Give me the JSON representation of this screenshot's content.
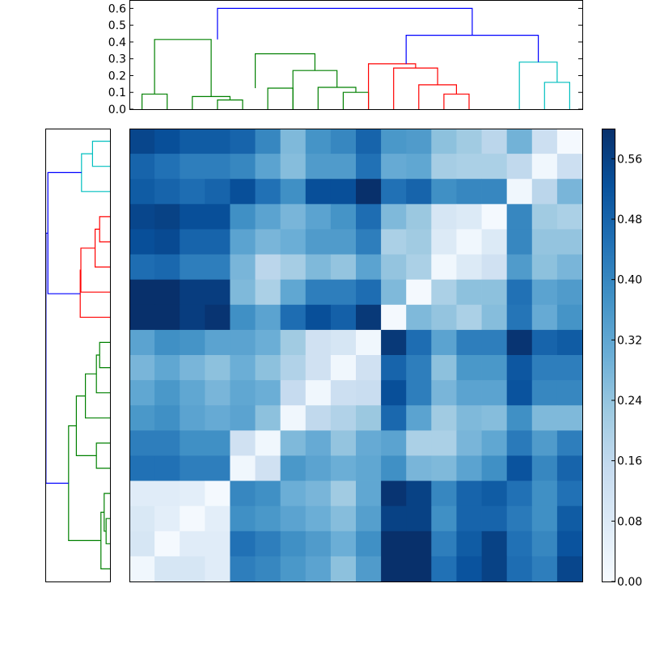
{
  "chart_data": [
    {
      "type": "dendrogram",
      "orientation": "top",
      "ylim": [
        0,
        0.65
      ],
      "y_ticks": [
        "0.0",
        "0.1",
        "0.2",
        "0.3",
        "0.4",
        "0.5",
        "0.6"
      ],
      "leaf_count": 18,
      "links": [
        {
          "a": 0.5,
          "b": 1.5,
          "ha": 0.0,
          "hb": 0.0,
          "h": 0.09,
          "color": "#008000"
        },
        {
          "a": 3.5,
          "b": 4.5,
          "ha": 0.0,
          "hb": 0.0,
          "h": 0.055,
          "color": "#008000"
        },
        {
          "a": 2.5,
          "b": 4.0,
          "ha": 0.0,
          "hb": 0.055,
          "h": 0.075,
          "color": "#008000"
        },
        {
          "a": 1.0,
          "b": 3.25,
          "ha": 0.09,
          "hb": 0.075,
          "h": 0.415,
          "color": "#008000"
        },
        {
          "a": 5.5,
          "b": 6.5,
          "ha": 0.0,
          "hb": 0.0,
          "h": 0.125,
          "color": "#008000"
        },
        {
          "a": 8.5,
          "b": 9.5,
          "ha": 0.0,
          "hb": 0.0,
          "h": 0.1,
          "color": "#008000"
        },
        {
          "a": 7.5,
          "b": 9.0,
          "ha": 0.0,
          "hb": 0.1,
          "h": 0.13,
          "color": "#008000"
        },
        {
          "a": 6.5,
          "b": 8.25,
          "ha": 0.0,
          "hb": 0.13,
          "h": 0.23,
          "color": "#008000"
        },
        {
          "a": 5.0,
          "b": 7.375,
          "ha": 0.125,
          "hb": 0.23,
          "h": 0.33,
          "color": "#008000"
        },
        {
          "a": 12.5,
          "b": 13.5,
          "ha": 0.0,
          "hb": 0.0,
          "h": 0.09,
          "color": "#ff0000"
        },
        {
          "a": 11.5,
          "b": 13.0,
          "ha": 0.0,
          "hb": 0.09,
          "h": 0.145,
          "color": "#ff0000"
        },
        {
          "a": 10.5,
          "b": 12.25,
          "ha": 0.0,
          "hb": 0.145,
          "h": 0.245,
          "color": "#ff0000"
        },
        {
          "a": 9.5,
          "b": 11.375,
          "ha": 0.0,
          "hb": 0.245,
          "h": 0.27,
          "color": "#ff0000"
        },
        {
          "a": 16.5,
          "b": 17.5,
          "ha": 0.0,
          "hb": 0.0,
          "h": 0.16,
          "color": "#00bfbf"
        },
        {
          "a": 15.5,
          "b": 17.0,
          "ha": 0.0,
          "hb": 0.16,
          "h": 0.28,
          "color": "#00bfbf"
        },
        {
          "a": 11.0,
          "b": 16.25,
          "ha": 0.27,
          "hb": 0.28,
          "h": 0.44,
          "color": "#0000ff"
        },
        {
          "a": 3.5,
          "b": 13.625,
          "ha": 0.415,
          "hb": 0.44,
          "h": 0.6,
          "color": "#0000ff"
        }
      ]
    },
    {
      "type": "dendrogram",
      "orientation": "left",
      "leaf_count": 18,
      "links": [
        {
          "a": 0.5,
          "b": 1.5,
          "ha": 0.0,
          "hb": 0.0,
          "h": 0.27,
          "color": "#00bfbf"
        },
        {
          "a": 1.0,
          "b": 2.5,
          "ha": 0.27,
          "hb": 0.0,
          "h": 0.44,
          "color": "#00bfbf"
        },
        {
          "a": 3.5,
          "b": 4.5,
          "ha": 0.0,
          "hb": 0.0,
          "h": 0.16,
          "color": "#ff0000"
        },
        {
          "a": 4.0,
          "b": 5.5,
          "ha": 0.16,
          "hb": 0.0,
          "h": 0.23,
          "color": "#ff0000"
        },
        {
          "a": 4.75,
          "b": 6.5,
          "ha": 0.23,
          "hb": 0.0,
          "h": 0.45,
          "color": "#ff0000"
        },
        {
          "a": 5.625,
          "b": 7.5,
          "ha": 0.45,
          "hb": 0.0,
          "h": 0.46,
          "color": "#ff0000"
        },
        {
          "a": 1.75,
          "b": 6.5625,
          "ha": 0.44,
          "hb": 0.46,
          "h": 0.96,
          "color": "#0000ff"
        },
        {
          "a": 8.5,
          "b": 9.5,
          "ha": 0.0,
          "hb": 0.0,
          "h": 0.16,
          "color": "#008000"
        },
        {
          "a": 9.0,
          "b": 10.5,
          "ha": 0.16,
          "hb": 0.0,
          "h": 0.21,
          "color": "#008000"
        },
        {
          "a": 9.75,
          "b": 11.5,
          "ha": 0.21,
          "hb": 0.0,
          "h": 0.38,
          "color": "#008000"
        },
        {
          "a": 12.5,
          "b": 13.5,
          "ha": 0.0,
          "hb": 0.0,
          "h": 0.21,
          "color": "#008000"
        },
        {
          "a": 10.625,
          "b": 13.0,
          "ha": 0.38,
          "hb": 0.21,
          "h": 0.52,
          "color": "#008000"
        },
        {
          "a": 15.5,
          "b": 16.5,
          "ha": 0.0,
          "hb": 0.0,
          "h": 0.06,
          "color": "#008000"
        },
        {
          "a": 14.5,
          "b": 16.0,
          "ha": 0.0,
          "hb": 0.06,
          "h": 0.09,
          "color": "#008000"
        },
        {
          "a": 15.25,
          "b": 17.5,
          "ha": 0.09,
          "hb": 0.0,
          "h": 0.14,
          "color": "#008000"
        },
        {
          "a": 16.375,
          "b": 11.8125,
          "ha": 0.14,
          "hb": 0.52,
          "h": 0.64,
          "color": "#008000"
        },
        {
          "a": 4.15625,
          "b": 14.09375,
          "ha": 0.96,
          "hb": 0.64,
          "h": 0.99,
          "color": "#0000ff"
        }
      ]
    },
    {
      "type": "heatmap",
      "rows": 18,
      "cols": 18,
      "values": [
        [
          0.55,
          0.53,
          0.5,
          0.5,
          0.48,
          0.4,
          0.27,
          0.37,
          0.4,
          0.48,
          0.36,
          0.35,
          0.25,
          0.22,
          0.17,
          0.29,
          0.13,
          0.01
        ],
        [
          0.48,
          0.45,
          0.42,
          0.42,
          0.4,
          0.33,
          0.26,
          0.35,
          0.35,
          0.45,
          0.31,
          0.32,
          0.21,
          0.2,
          0.2,
          0.16,
          0.02,
          0.13
        ],
        [
          0.5,
          0.48,
          0.46,
          0.48,
          0.53,
          0.45,
          0.38,
          0.53,
          0.53,
          0.6,
          0.45,
          0.48,
          0.38,
          0.4,
          0.4,
          0.02,
          0.17,
          0.28
        ],
        [
          0.55,
          0.56,
          0.53,
          0.53,
          0.38,
          0.33,
          0.28,
          0.33,
          0.37,
          0.46,
          0.27,
          0.23,
          0.1,
          0.08,
          0.01,
          0.4,
          0.22,
          0.2
        ],
        [
          0.53,
          0.54,
          0.48,
          0.48,
          0.33,
          0.28,
          0.3,
          0.35,
          0.35,
          0.42,
          0.2,
          0.22,
          0.08,
          0.02,
          0.08,
          0.4,
          0.24,
          0.24
        ],
        [
          0.46,
          0.47,
          0.42,
          0.42,
          0.28,
          0.17,
          0.21,
          0.27,
          0.24,
          0.33,
          0.24,
          0.2,
          0.02,
          0.08,
          0.12,
          0.35,
          0.25,
          0.28
        ],
        [
          0.6,
          0.6,
          0.57,
          0.57,
          0.27,
          0.2,
          0.32,
          0.42,
          0.42,
          0.46,
          0.27,
          0.01,
          0.2,
          0.25,
          0.25,
          0.45,
          0.33,
          0.35
        ],
        [
          0.61,
          0.6,
          0.57,
          0.59,
          0.38,
          0.33,
          0.46,
          0.53,
          0.49,
          0.58,
          0.01,
          0.27,
          0.24,
          0.2,
          0.26,
          0.44,
          0.31,
          0.37
        ],
        [
          0.33,
          0.38,
          0.37,
          0.33,
          0.33,
          0.3,
          0.22,
          0.12,
          0.1,
          0.02,
          0.58,
          0.46,
          0.33,
          0.42,
          0.42,
          0.59,
          0.48,
          0.5
        ],
        [
          0.28,
          0.32,
          0.28,
          0.25,
          0.3,
          0.25,
          0.19,
          0.12,
          0.02,
          0.12,
          0.48,
          0.42,
          0.25,
          0.36,
          0.36,
          0.51,
          0.42,
          0.42
        ],
        [
          0.32,
          0.36,
          0.32,
          0.28,
          0.32,
          0.3,
          0.15,
          0.02,
          0.13,
          0.14,
          0.53,
          0.42,
          0.28,
          0.33,
          0.33,
          0.52,
          0.4,
          0.4
        ],
        [
          0.36,
          0.38,
          0.33,
          0.31,
          0.33,
          0.25,
          0.02,
          0.16,
          0.19,
          0.23,
          0.47,
          0.33,
          0.22,
          0.27,
          0.26,
          0.38,
          0.27,
          0.27
        ],
        [
          0.42,
          0.42,
          0.38,
          0.38,
          0.12,
          0.02,
          0.27,
          0.31,
          0.24,
          0.31,
          0.33,
          0.2,
          0.2,
          0.28,
          0.32,
          0.43,
          0.35,
          0.42
        ],
        [
          0.45,
          0.45,
          0.42,
          0.42,
          0.02,
          0.12,
          0.36,
          0.33,
          0.3,
          0.32,
          0.38,
          0.28,
          0.27,
          0.33,
          0.38,
          0.52,
          0.4,
          0.48
        ],
        [
          0.07,
          0.07,
          0.06,
          0.01,
          0.4,
          0.38,
          0.3,
          0.28,
          0.22,
          0.32,
          0.59,
          0.56,
          0.4,
          0.48,
          0.5,
          0.45,
          0.38,
          0.45
        ],
        [
          0.09,
          0.06,
          0.01,
          0.06,
          0.38,
          0.36,
          0.33,
          0.3,
          0.26,
          0.34,
          0.56,
          0.56,
          0.38,
          0.48,
          0.48,
          0.43,
          0.38,
          0.5
        ],
        [
          0.1,
          0.01,
          0.07,
          0.07,
          0.45,
          0.42,
          0.38,
          0.35,
          0.3,
          0.38,
          0.62,
          0.6,
          0.42,
          0.5,
          0.56,
          0.45,
          0.4,
          0.52
        ],
        [
          0.02,
          0.1,
          0.1,
          0.07,
          0.42,
          0.4,
          0.36,
          0.33,
          0.25,
          0.35,
          0.62,
          0.6,
          0.45,
          0.52,
          0.56,
          0.46,
          0.42,
          0.55
        ]
      ]
    },
    {
      "type": "colorbar",
      "vmin": 0.0,
      "vmax": 0.6,
      "colors": [
        "#f7fbff",
        "#deebf7",
        "#c6dbef",
        "#9ecae1",
        "#6baed6",
        "#4292c6",
        "#2171b5",
        "#08519c",
        "#08306b"
      ],
      "ticks": [
        {
          "value": 0.0,
          "label": "0.00"
        },
        {
          "value": 0.08,
          "label": "0.08"
        },
        {
          "value": 0.16,
          "label": "0.16"
        },
        {
          "value": 0.24,
          "label": "0.24"
        },
        {
          "value": 0.32,
          "label": "0.32"
        },
        {
          "value": 0.4,
          "label": "0.40"
        },
        {
          "value": 0.48,
          "label": "0.48"
        },
        {
          "value": 0.56,
          "label": "0.56"
        }
      ]
    }
  ]
}
